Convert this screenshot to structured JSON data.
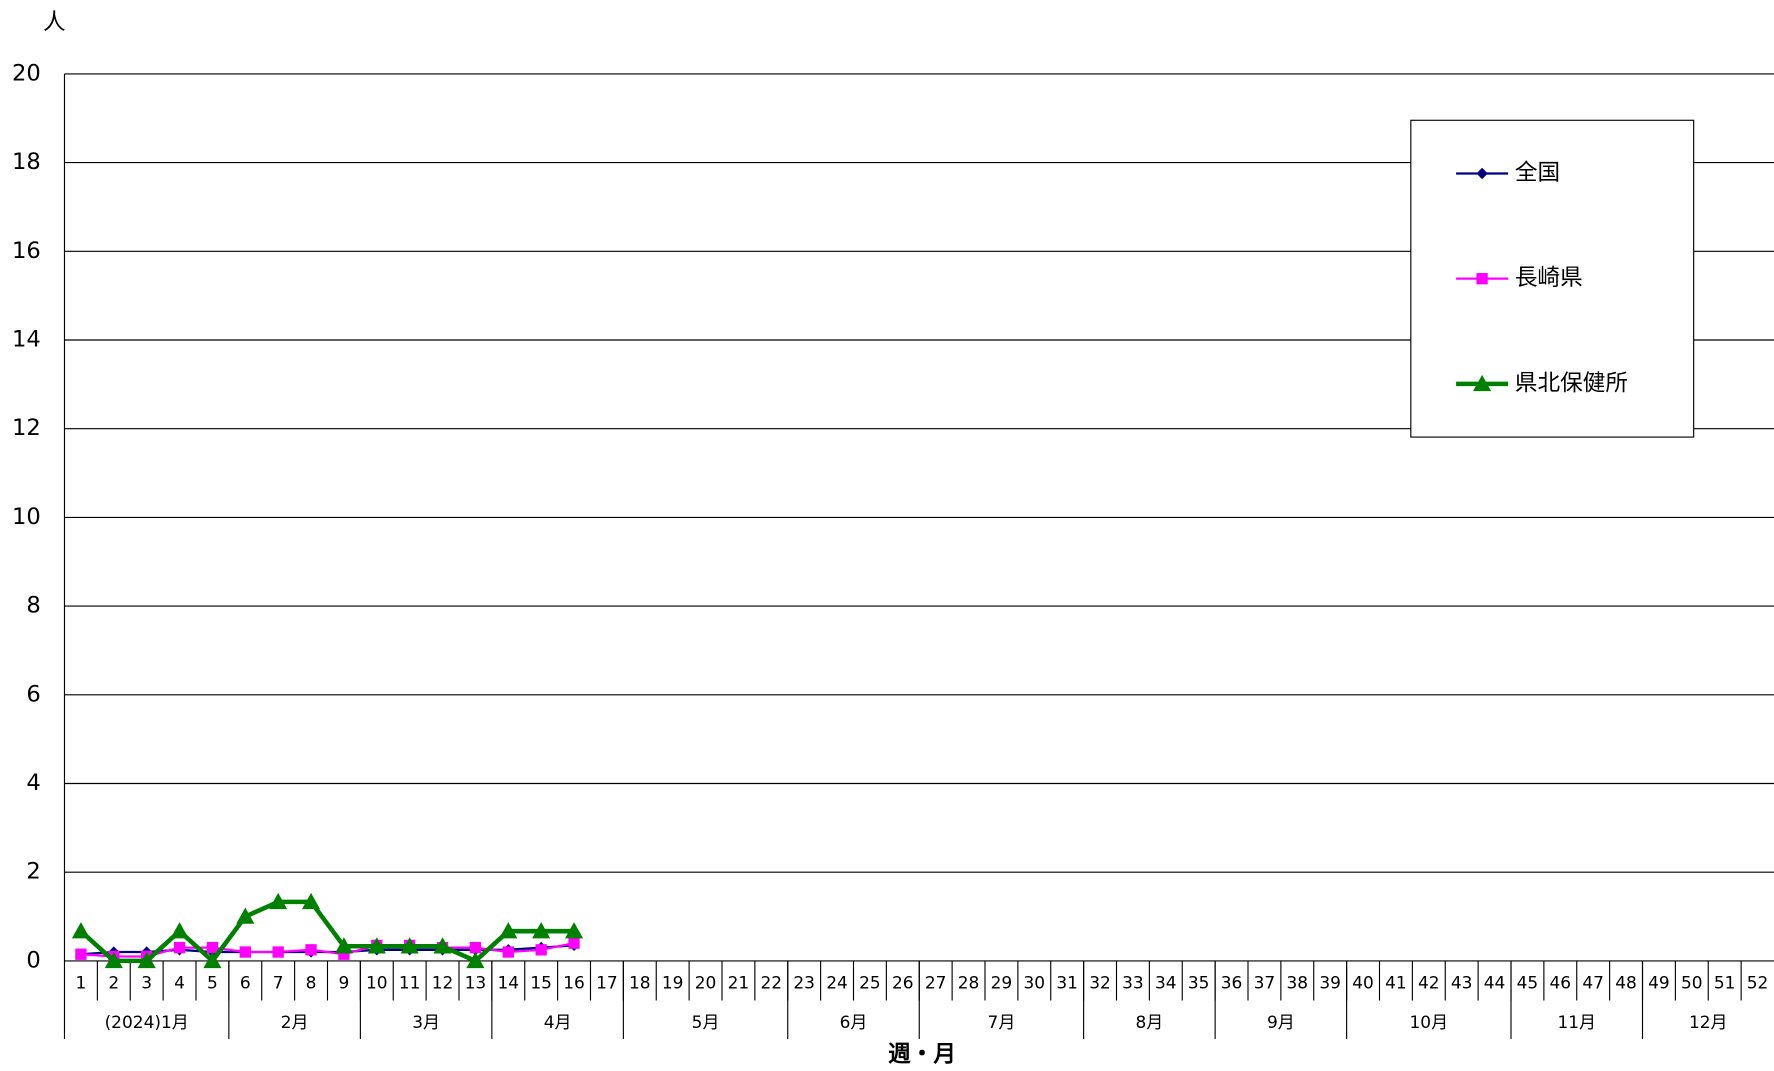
{
  "chart_data": {
    "type": "line",
    "y_unit_label": "人",
    "x_label": "週・月",
    "categories": [
      "1",
      "2",
      "3",
      "4",
      "5",
      "6",
      "7",
      "8",
      "9",
      "10",
      "11",
      "12",
      "13",
      "14",
      "15",
      "16",
      "17",
      "18",
      "19",
      "20",
      "21",
      "22",
      "23",
      "24",
      "25",
      "26",
      "27",
      "28",
      "29",
      "30",
      "31",
      "32",
      "33",
      "34",
      "35",
      "36",
      "37",
      "38",
      "39",
      "40",
      "41",
      "42",
      "43",
      "44",
      "45",
      "46",
      "47",
      "48",
      "49",
      "50",
      "51",
      "52"
    ],
    "month_groups": [
      {
        "label": "(2024)1月",
        "weeks": 5
      },
      {
        "label": "2月",
        "weeks": 4
      },
      {
        "label": "3月",
        "weeks": 4
      },
      {
        "label": "4月",
        "weeks": 4
      },
      {
        "label": "5月",
        "weeks": 5
      },
      {
        "label": "6月",
        "weeks": 4
      },
      {
        "label": "7月",
        "weeks": 5
      },
      {
        "label": "8月",
        "weeks": 4
      },
      {
        "label": "9月",
        "weeks": 4
      },
      {
        "label": "10月",
        "weeks": 5
      },
      {
        "label": "11月",
        "weeks": 4
      },
      {
        "label": "12月",
        "weeks": 4
      }
    ],
    "series": [
      {
        "name": "全国",
        "color": "#000080",
        "marker": "diamond",
        "values": [
          0.15,
          0.2,
          0.2,
          0.25,
          0.2,
          0.2,
          0.2,
          0.2,
          0.2,
          0.25,
          0.25,
          0.25,
          0.25,
          0.25,
          0.3,
          0.35,
          null,
          null,
          null,
          null,
          null,
          null,
          null,
          null,
          null,
          null,
          null,
          null,
          null,
          null,
          null,
          null,
          null,
          null,
          null,
          null,
          null,
          null,
          null,
          null,
          null,
          null,
          null,
          null,
          null,
          null,
          null,
          null,
          null,
          null,
          null,
          null
        ]
      },
      {
        "name": "長崎県",
        "color": "#ff00ff",
        "marker": "square",
        "values": [
          0.15,
          0.1,
          0.1,
          0.3,
          0.3,
          0.2,
          0.2,
          0.25,
          0.15,
          0.35,
          0.35,
          0.3,
          0.3,
          0.2,
          0.25,
          0.4,
          null,
          null,
          null,
          null,
          null,
          null,
          null,
          null,
          null,
          null,
          null,
          null,
          null,
          null,
          null,
          null,
          null,
          null,
          null,
          null,
          null,
          null,
          null,
          null,
          null,
          null,
          null,
          null,
          null,
          null,
          null,
          null,
          null,
          null,
          null,
          null
        ]
      },
      {
        "name": "県北保健所",
        "color": "#008000",
        "marker": "triangle",
        "values": [
          0.67,
          0,
          0,
          0.67,
          0,
          1,
          1.33,
          1.33,
          0.33,
          0.33,
          0.33,
          0.33,
          0,
          0.67,
          0.67,
          0.67,
          null,
          null,
          null,
          null,
          null,
          null,
          null,
          null,
          null,
          null,
          null,
          null,
          null,
          null,
          null,
          null,
          null,
          null,
          null,
          null,
          null,
          null,
          null,
          null,
          null,
          null,
          null,
          null,
          null,
          null,
          null,
          null,
          null,
          null,
          null,
          null
        ]
      }
    ],
    "ylim": [
      0,
      20
    ],
    "yticks": [
      0,
      2,
      4,
      6,
      8,
      10,
      12,
      14,
      16,
      18,
      20
    ],
    "grid": true,
    "legend": "upper right"
  }
}
